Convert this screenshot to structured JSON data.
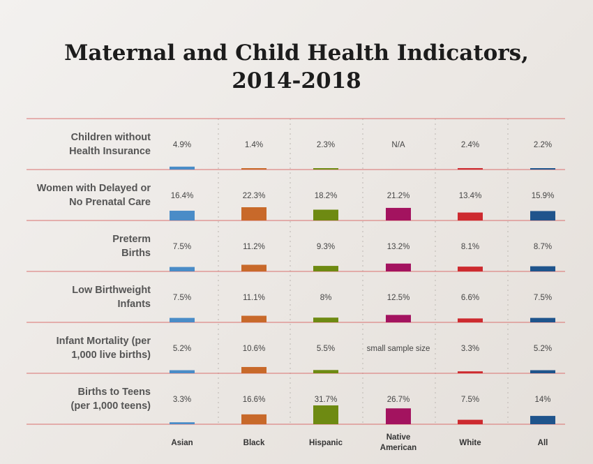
{
  "chart_data": {
    "type": "bar",
    "title": "Maternal and Child Health Indicators, 2014-2018",
    "title_lines": [
      "Maternal and Child Health Indicators,",
      "2014-2018"
    ],
    "categories": [
      {
        "label_lines": [
          "Asian"
        ],
        "color": "#4a8cc7"
      },
      {
        "label_lines": [
          "Black"
        ],
        "color": "#c8692a"
      },
      {
        "label_lines": [
          "Hispanic"
        ],
        "color": "#6e8a12"
      },
      {
        "label_lines": [
          "Native",
          "American"
        ],
        "color": "#a3135f"
      },
      {
        "label_lines": [
          "White"
        ],
        "color": "#cd2a2f"
      },
      {
        "label_lines": [
          "All"
        ],
        "color": "#1f548c"
      }
    ],
    "series": [
      {
        "name": "Children without Health Insurance",
        "label_lines": [
          "Children without",
          "Health Insurance"
        ],
        "values": [
          4.9,
          1.4,
          2.3,
          null,
          2.4,
          2.2
        ],
        "display": [
          "4.9%",
          "1.4%",
          "2.3%",
          "N/A",
          "2.4%",
          "2.2%"
        ]
      },
      {
        "name": "Women with Delayed or No Prenatal Care",
        "label_lines": [
          "Women with Delayed or",
          "No Prenatal Care"
        ],
        "values": [
          16.4,
          22.3,
          18.2,
          21.2,
          13.4,
          15.9
        ],
        "display": [
          "16.4%",
          "22.3%",
          "18.2%",
          "21.2%",
          "13.4%",
          "15.9%"
        ]
      },
      {
        "name": "Preterm Births",
        "label_lines": [
          "Preterm",
          "Births"
        ],
        "values": [
          7.5,
          11.2,
          9.3,
          13.2,
          8.1,
          8.7
        ],
        "display": [
          "7.5%",
          "11.2%",
          "9.3%",
          "13.2%",
          "8.1%",
          "8.7%"
        ]
      },
      {
        "name": "Low Birthweight Infants",
        "label_lines": [
          "Low Birthweight",
          "Infants"
        ],
        "values": [
          7.5,
          11.1,
          8,
          12.5,
          6.6,
          7.5
        ],
        "display": [
          "7.5%",
          "11.1%",
          "8%",
          "12.5%",
          "6.6%",
          "7.5%"
        ]
      },
      {
        "name": "Infant Mortality (per 1,000 live births)",
        "label_lines": [
          "Infant Mortality (per",
          "1,000 live births)"
        ],
        "values": [
          5.2,
          10.6,
          5.5,
          null,
          3.3,
          5.2
        ],
        "display": [
          "5.2%",
          "10.6%",
          "5.5%",
          "small sample size",
          "3.3%",
          "5.2%"
        ]
      },
      {
        "name": "Births to Teens (per 1,000 teens)",
        "label_lines": [
          "Births to Teens",
          "(per 1,000 teens)"
        ],
        "values": [
          3.3,
          16.6,
          31.7,
          26.7,
          7.5,
          14
        ],
        "display": [
          "3.3%",
          "16.6%",
          "31.7%",
          "26.7%",
          "7.5%",
          "14%"
        ]
      }
    ],
    "value_max": 31.7
  },
  "colors": {
    "row_line": "#d9706f",
    "divider": "#c9c4bf",
    "title": "#1c1c1c"
  }
}
